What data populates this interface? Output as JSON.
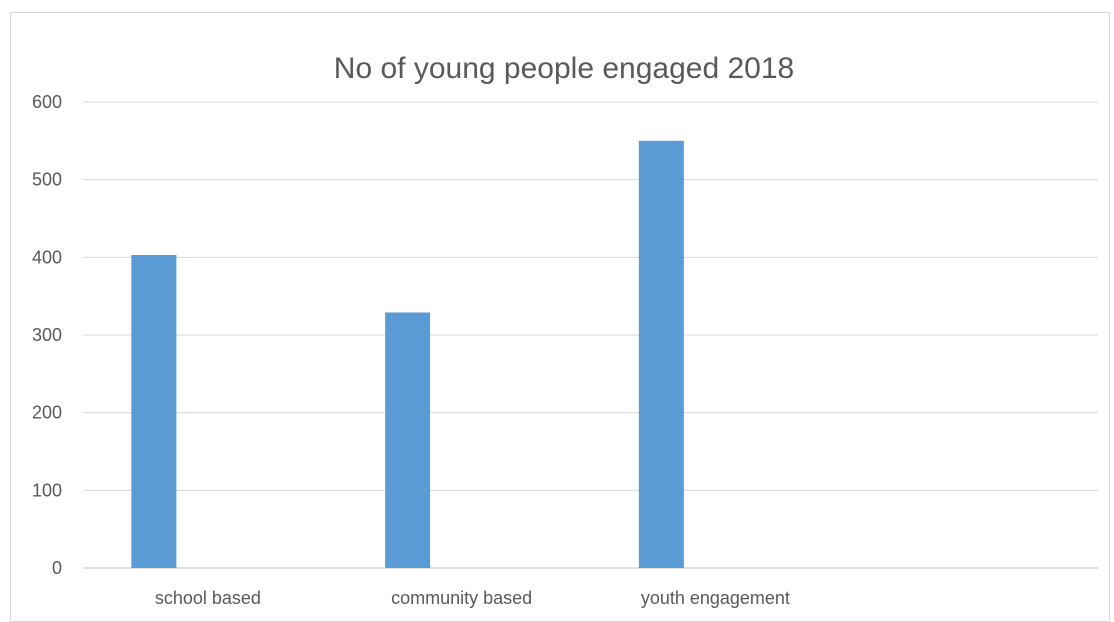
{
  "chart_data": {
    "type": "bar",
    "title": "No of young people engaged 2018",
    "categories": [
      "school based",
      "community based",
      "youth engagement",
      ""
    ],
    "values": [
      403,
      329,
      550,
      null
    ],
    "ylim": [
      0,
      600
    ],
    "yticks": [
      0,
      100,
      200,
      300,
      400,
      500,
      600
    ],
    "grid": true,
    "legend": "none",
    "bar_color": "#5b9bd5"
  }
}
